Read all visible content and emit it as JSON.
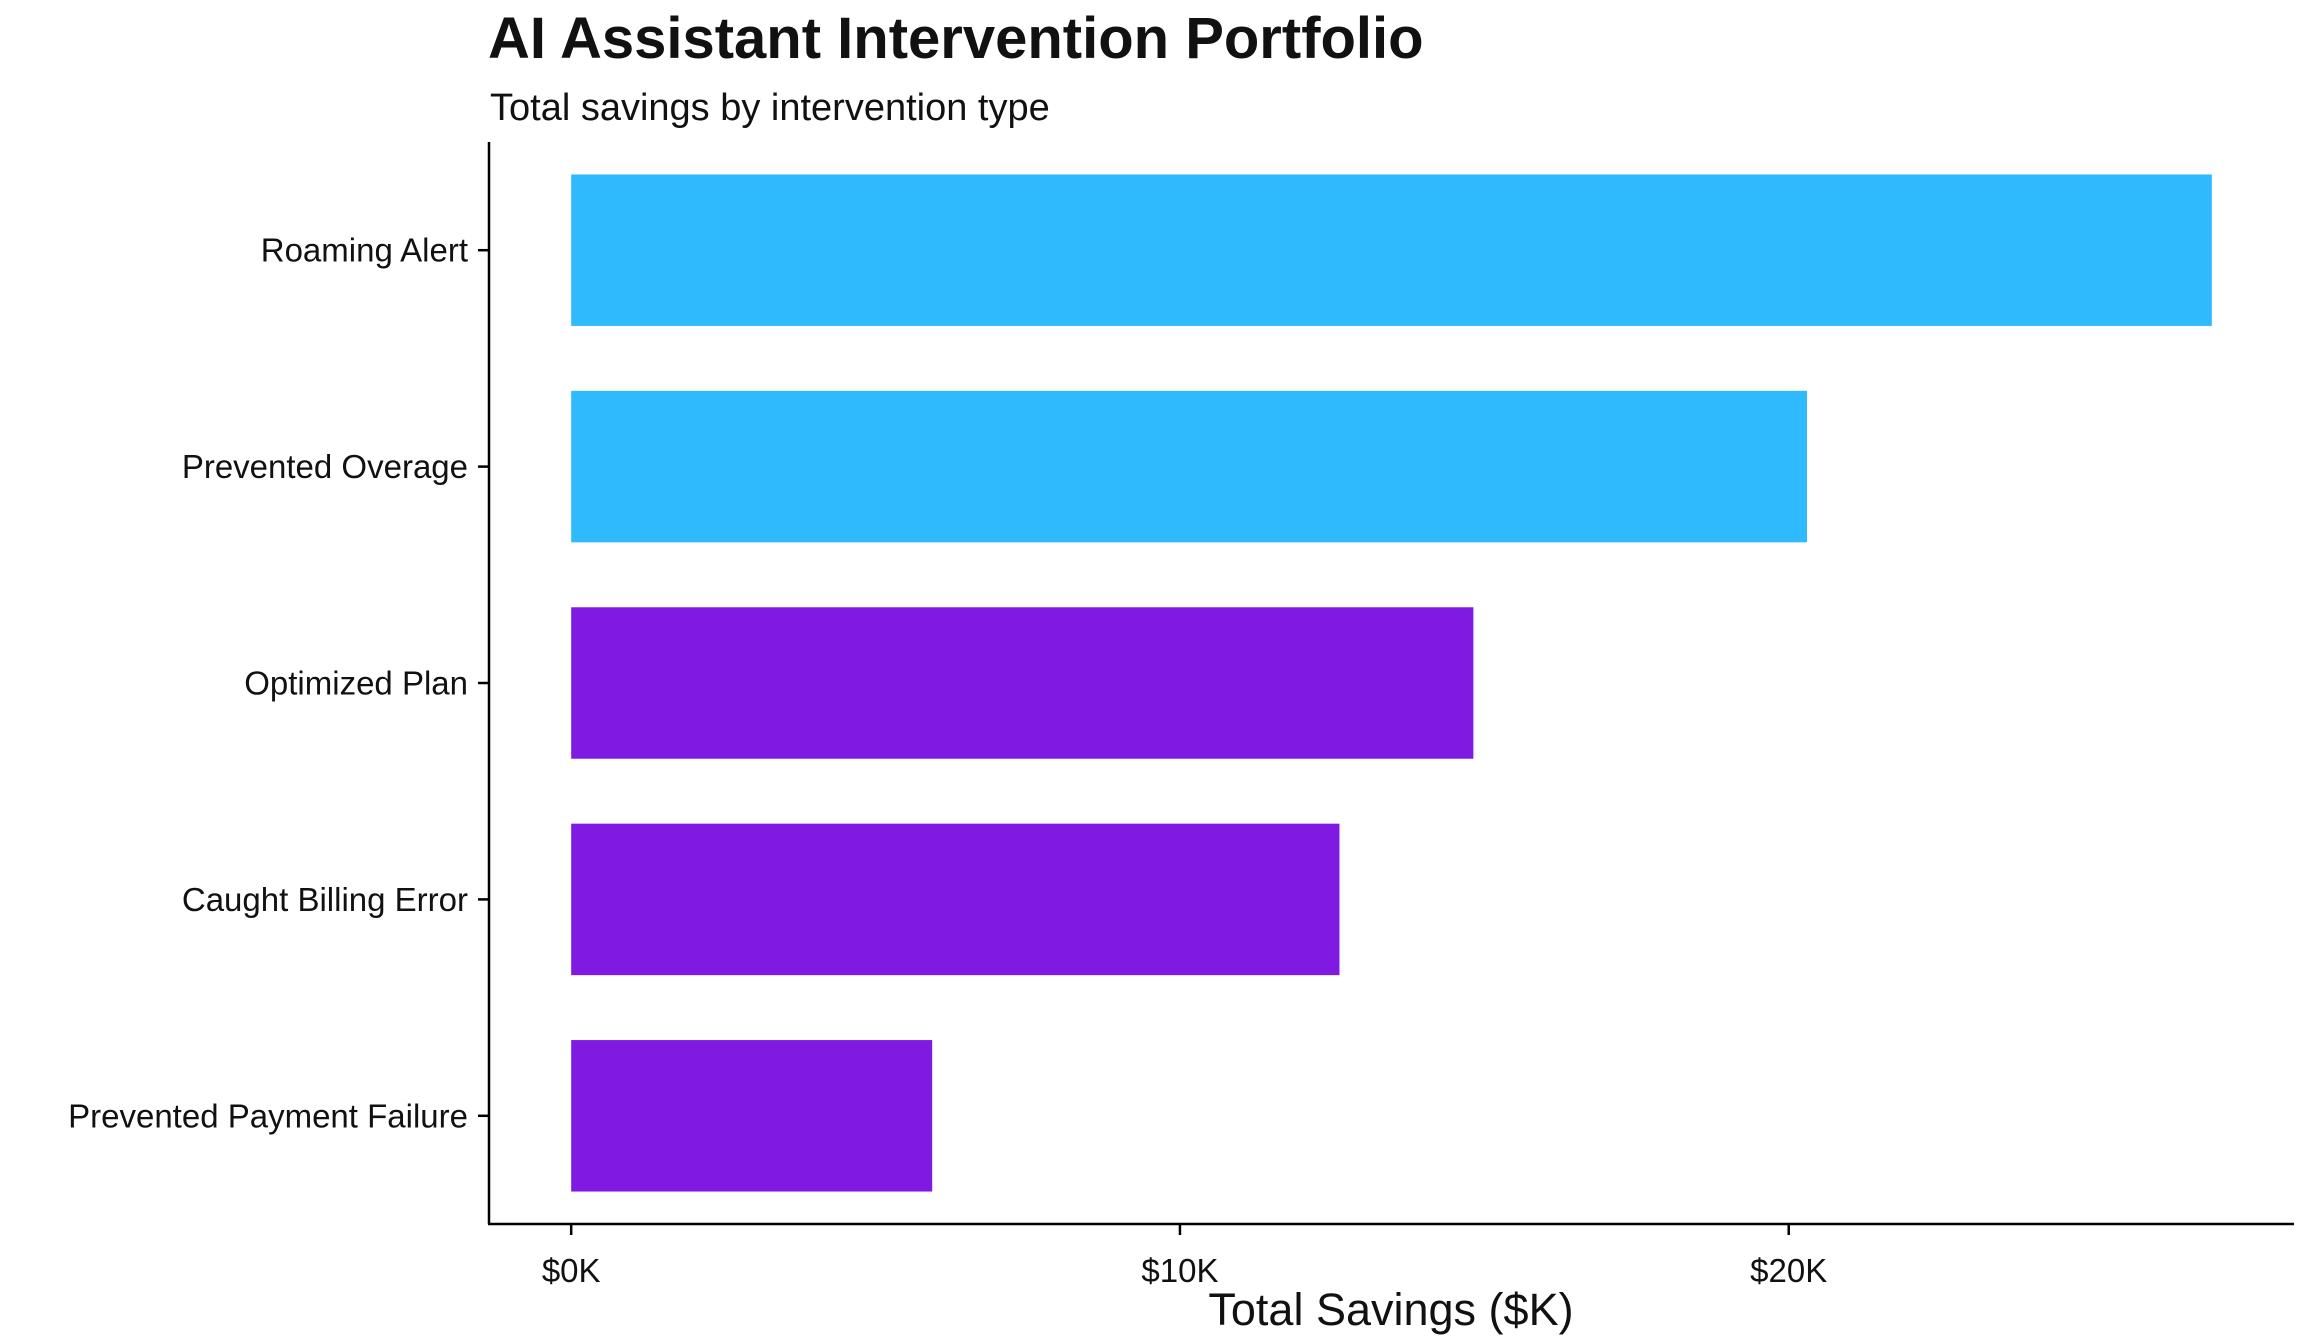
{
  "chart_data": {
    "type": "bar",
    "orientation": "horizontal",
    "title": "AI Assistant Intervention Portfolio",
    "subtitle": "Total savings by intervention type",
    "xlabel": "Total Savings ($K)",
    "ylabel": "",
    "xlim": [
      -1.35,
      28.3
    ],
    "xticks": [
      {
        "value": 0,
        "label": "$0K"
      },
      {
        "value": 10,
        "label": "$10K"
      },
      {
        "value": 20,
        "label": "$20K"
      }
    ],
    "categories": [
      "Roaming Alert",
      "Prevented Overage",
      "Optimized Plan",
      "Caught Billing Error",
      "Prevented Payment Failure"
    ],
    "values": [
      26.95,
      20.3,
      14.82,
      12.62,
      5.93
    ],
    "bar_colors": [
      "#2EBAFD",
      "#2EBAFD",
      "#801AE2",
      "#801AE2",
      "#801AE2"
    ],
    "grid": false,
    "legend": "none"
  }
}
